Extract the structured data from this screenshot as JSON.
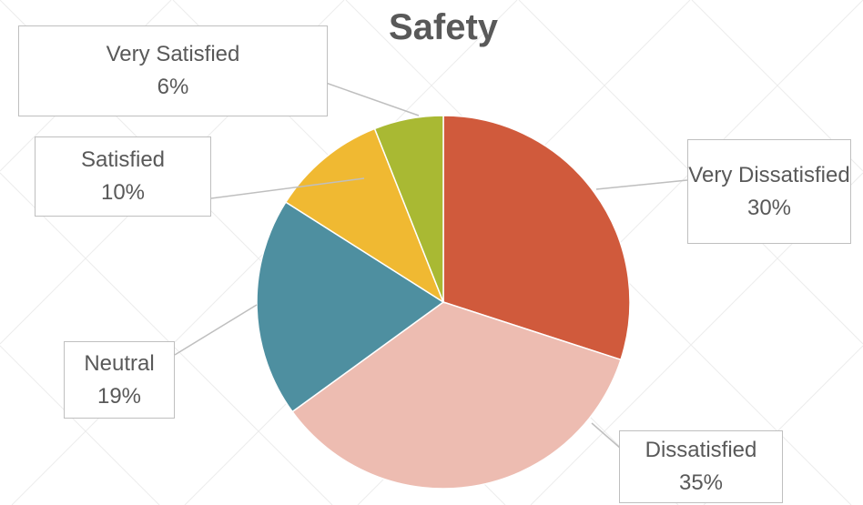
{
  "chart_data": {
    "type": "pie",
    "title": "Safety",
    "categories": [
      "Very Dissatisfied",
      "Dissatisfied",
      "Neutral",
      "Satisfied",
      "Very Satisfied"
    ],
    "values": [
      30,
      35,
      19,
      10,
      6
    ],
    "value_labels": [
      "30%",
      "35%",
      "19%",
      "10%",
      "6%"
    ],
    "colors": [
      "#d05a3c",
      "#edbcb1",
      "#4e8fa0",
      "#f0b932",
      "#a9b933"
    ]
  }
}
